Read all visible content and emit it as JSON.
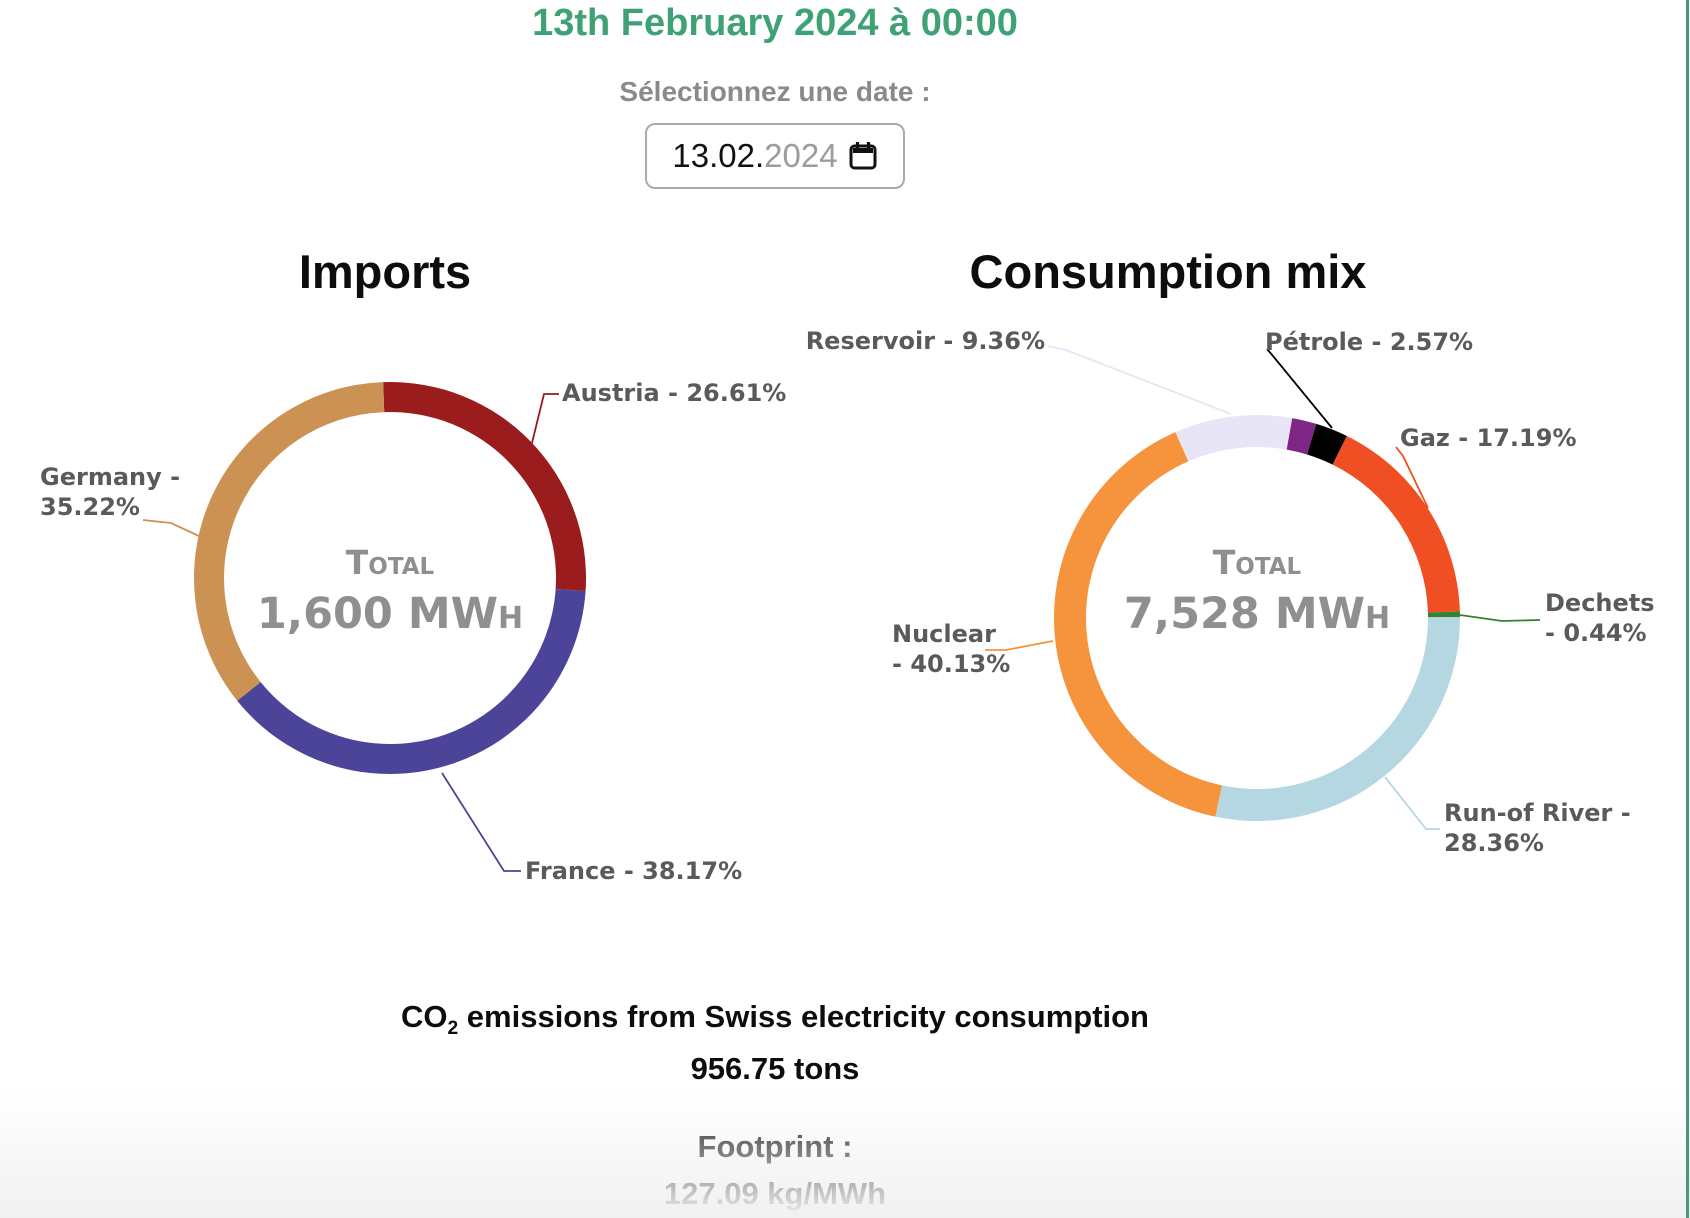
{
  "page": {
    "title": "13th February 2024 à 00:00",
    "title_color": "#3fa274",
    "date_picker": {
      "label": "Sélectionnez une date :",
      "value_day_month": "13.02.",
      "value_year": "2024",
      "icon": "calendar-icon"
    },
    "footer": {
      "co2_title_prefix": "CO",
      "co2_title_sub": "2",
      "co2_title_suffix": " emissions from Swiss electricity consumption",
      "co2_value": "956.75 tons",
      "footprint_label": "Footprint :",
      "footprint_value": "127.09 kg/MWh"
    },
    "right_border_color": "#439d70"
  },
  "chart_data": [
    {
      "type": "pie",
      "subtype": "donut",
      "title": "Imports",
      "total_label": "Total",
      "total_value": "1,600 MWh",
      "start_angle_deg": -2,
      "slices": [
        {
          "name": "Austria",
          "value": 26.61,
          "label": "Austria - 26.61%",
          "label_lines": [
            "Austria - 26.61%"
          ],
          "color": "#9a1c1c"
        },
        {
          "name": "France",
          "value": 38.17,
          "label": "France - 38.17%",
          "label_lines": [
            "France - 38.17%"
          ],
          "color": "#4c4499"
        },
        {
          "name": "Germany",
          "value": 35.22,
          "label": "Germany - 35.22%",
          "label_lines": [
            "Germany -",
            "35.22%"
          ],
          "color": "#cb9254"
        }
      ]
    },
    {
      "type": "pie",
      "subtype": "donut",
      "title": "Consumption mix",
      "total_label": "Total",
      "total_value": "7,528 MWh",
      "start_angle_deg": -23.7,
      "slices": [
        {
          "name": "Reservoir",
          "value": 9.36,
          "label": "Reservoir - 9.36%",
          "label_lines": [
            "Reservoir - 9.36%"
          ],
          "color": "#e8e5f6"
        },
        {
          "name": "unlabeled-purple",
          "value": 1.95,
          "label": "",
          "label_lines": [],
          "color": "#7f2585"
        },
        {
          "name": "Pétrole",
          "value": 2.57,
          "label": "Pétrole - 2.57%",
          "label_lines": [
            "Pétrole - 2.57%"
          ],
          "color": "#000000"
        },
        {
          "name": "Gaz",
          "value": 17.19,
          "label": "Gaz - 17.19%",
          "label_lines": [
            "Gaz - 17.19%"
          ],
          "color": "#f04f23"
        },
        {
          "name": "Dechets",
          "value": 0.44,
          "label": "Dechets - 0.44%",
          "label_lines": [
            "Dechets",
            "- 0.44%"
          ],
          "color": "#368232"
        },
        {
          "name": "Run-of River",
          "value": 28.36,
          "label": "Run-of River - 28.36%",
          "label_lines": [
            "Run-of River -",
            "28.36%"
          ],
          "color": "#b5d7e2"
        },
        {
          "name": "Nuclear",
          "value": 40.13,
          "label": "Nuclear - 40.13%",
          "label_lines": [
            "Nuclear",
            "- 40.13%"
          ],
          "color": "#f5943c"
        }
      ]
    }
  ]
}
